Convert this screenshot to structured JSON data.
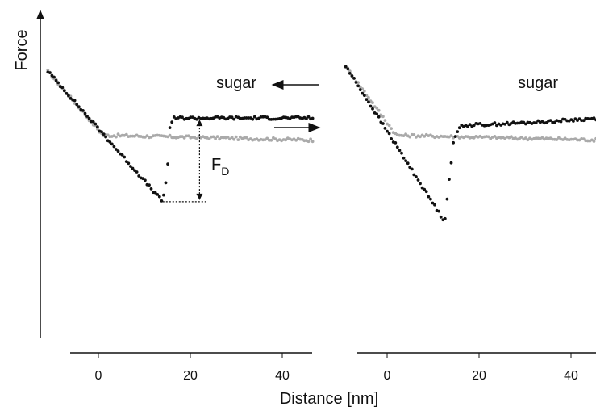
{
  "chart_data": [
    {
      "type": "scatter",
      "title": "",
      "ylabel": "Force",
      "xlabel": "Distance [nm]",
      "xticks": [
        "0",
        "20",
        "40"
      ],
      "xlim": [
        -10,
        47
      ],
      "ylim": [
        -100,
        20
      ],
      "annotations": {
        "label": "sugar",
        "fd_main": "F",
        "fd_sub": "D"
      },
      "series": [
        {
          "color": "#aaaaaa",
          "x": [
            -11,
            1,
            47
          ],
          "y": [
            16,
            -10,
            -12
          ]
        },
        {
          "color": "#111111",
          "x": [
            -11,
            14,
            15,
            15.5,
            16.5,
            20,
            35,
            47
          ],
          "y": [
            16,
            -37,
            -25,
            -7,
            -3,
            -3,
            -3,
            -3
          ]
        }
      ],
      "fd_marker": {
        "x": 22,
        "y_from": -37,
        "y_to": -3
      }
    },
    {
      "type": "scatter",
      "title": "",
      "xticks": [
        "0",
        "20",
        "40"
      ],
      "xlim": [
        -10,
        47
      ],
      "ylim": [
        -100,
        20
      ],
      "annotations": {
        "label": "sugar"
      },
      "series": [
        {
          "color": "#aaaaaa",
          "x": [
            -9,
            2,
            47
          ],
          "y": [
            18,
            -10,
            -12
          ]
        },
        {
          "color": "#111111",
          "x": [
            -9,
            12.5,
            13.5,
            14.5,
            16,
            30,
            47
          ],
          "y": [
            18,
            -45,
            -28,
            -12,
            -6,
            -5,
            -3
          ]
        }
      ]
    }
  ],
  "colors": {
    "approach": "#aaaaaa",
    "retract": "#111111"
  }
}
